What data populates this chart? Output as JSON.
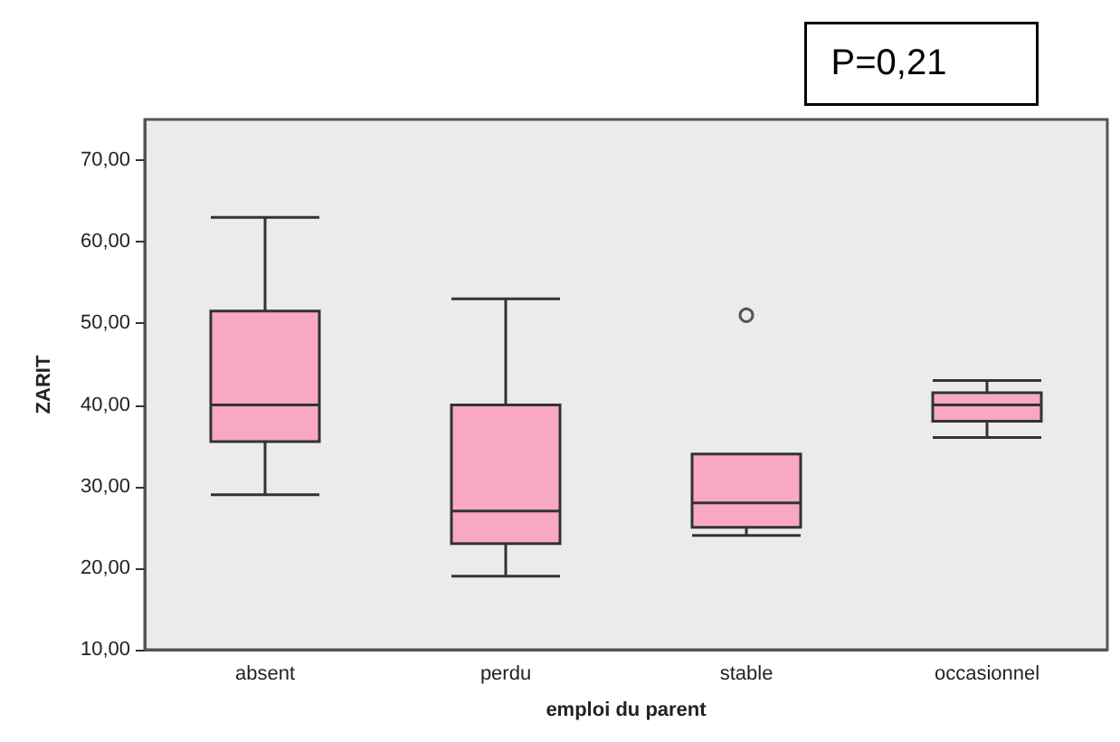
{
  "chart_data": {
    "type": "box",
    "xlabel": "emploi du parent",
    "ylabel": "ZARIT",
    "annotations": [
      "P=0,21"
    ],
    "categories": [
      "absent",
      "perdu",
      "stable",
      "occasionnel"
    ],
    "color": "#f9a8c4",
    "boxes": [
      {
        "low": 29,
        "q1": 35.5,
        "median": 40,
        "q3": 51.5,
        "high": 63
      },
      {
        "low": 19,
        "q1": 23,
        "median": 27,
        "q3": 40,
        "high": 53
      },
      {
        "low": 24,
        "q1": 25,
        "median": 28,
        "q3": 34,
        "high": 34,
        "outliers": [
          51
        ]
      },
      {
        "low": 36,
        "q1": 38,
        "median": 40,
        "q3": 41.5,
        "high": 43
      }
    ],
    "ylim": [
      10,
      75
    ],
    "yticks": [
      {
        "value": 10,
        "label": "10,00"
      },
      {
        "value": 20,
        "label": "20,00"
      },
      {
        "value": 30,
        "label": "30,00"
      },
      {
        "value": 40,
        "label": "40,00"
      },
      {
        "value": 50,
        "label": "50,00"
      },
      {
        "value": 60,
        "label": "60,00"
      },
      {
        "value": 70,
        "label": "70,00"
      }
    ],
    "grid": false
  }
}
